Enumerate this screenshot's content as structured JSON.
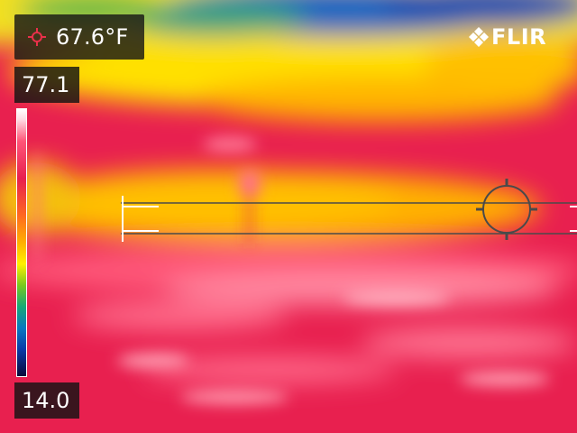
{
  "spot_meter": {
    "icon": "crosshair-icon",
    "value": "67.6°F"
  },
  "brand": {
    "icon": "flir-logo-icon",
    "text": "FLIR"
  },
  "temperature_scale": {
    "max": "77.1",
    "min": "14.0"
  },
  "colors": {
    "overlay_box": "#141414",
    "palette": "iron-rainbow"
  }
}
